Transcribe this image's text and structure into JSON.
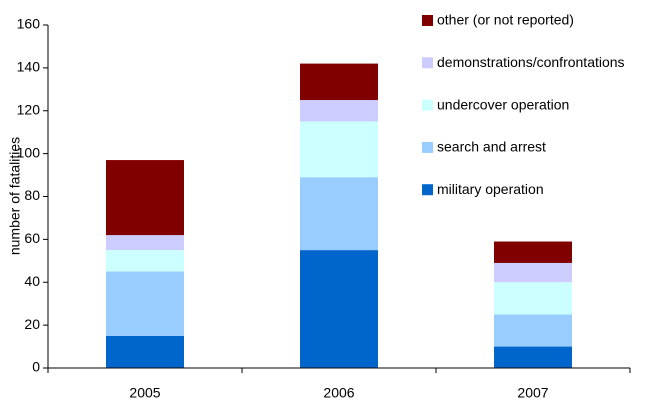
{
  "chart_data": {
    "type": "stacked_bar",
    "y_label": "number of fatalities",
    "categories": [
      "2005",
      "2006",
      "2007"
    ],
    "series": [
      {
        "name": "military operation",
        "color": "#0066cc",
        "values": [
          15,
          55,
          10
        ]
      },
      {
        "name": "search and arrest",
        "color": "#99ccff",
        "values": [
          30,
          34,
          15
        ]
      },
      {
        "name": "undercover operation",
        "color": "#ccffff",
        "values": [
          10,
          26,
          15
        ]
      },
      {
        "name": "demonstrations/confrontations",
        "color": "#ccccff",
        "values": [
          7,
          10,
          9
        ]
      },
      {
        "name": "other (or not reported)",
        "color": "#800000",
        "values": [
          35,
          17,
          10
        ]
      }
    ],
    "ylim": [
      0,
      160
    ],
    "yticks": [
      0,
      20,
      40,
      60,
      80,
      100,
      120,
      140,
      160
    ],
    "legend": "top-right"
  }
}
